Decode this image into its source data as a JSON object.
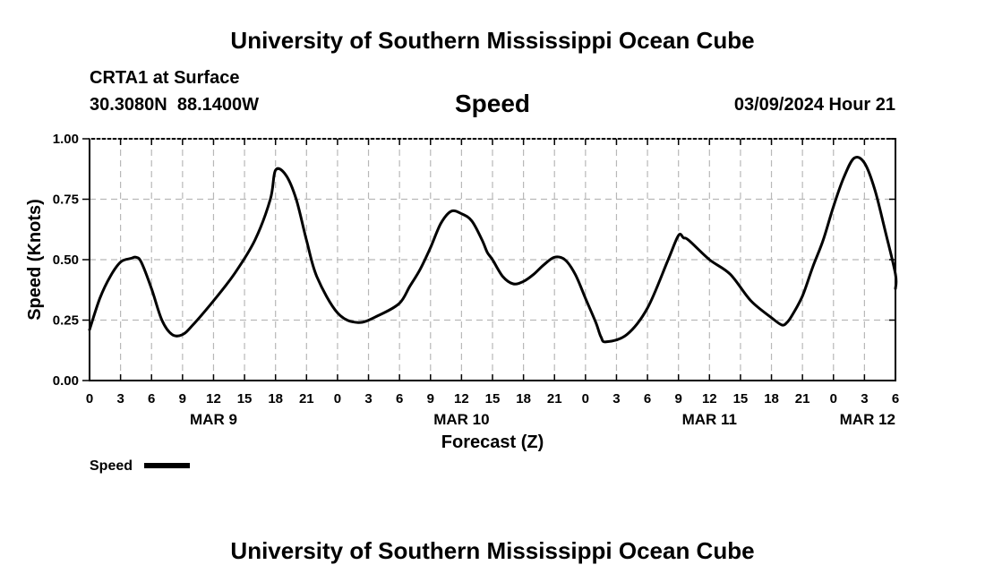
{
  "header": {
    "title": "University of Southern Mississippi Ocean Cube",
    "station": "CRTA1 at Surface",
    "coords": "30.3080N  88.1400W",
    "variable": "Speed",
    "datetime": "03/09/2024 Hour 21"
  },
  "footer": {
    "title": "University of Southern Mississippi Ocean Cube"
  },
  "chart_data": {
    "type": "line",
    "title": "Speed",
    "xlabel": "Forecast (Z)",
    "ylabel": "Speed (Knots)",
    "ylim": [
      0,
      1
    ],
    "xlim": [
      0,
      78
    ],
    "grid": true,
    "legend": {
      "position": "bottom-left",
      "entries": [
        "Speed"
      ]
    },
    "yticks": [
      0,
      0.25,
      0.5,
      0.75,
      1.0
    ],
    "ytick_labels": [
      "0.00",
      "0.25",
      "0.50",
      "0.75",
      "1.00"
    ],
    "xticks": [
      0,
      3,
      6,
      9,
      12,
      15,
      18,
      21,
      24,
      27,
      30,
      33,
      36,
      39,
      42,
      45,
      48,
      51,
      54,
      57,
      60,
      63,
      66,
      69,
      72,
      75,
      78
    ],
    "xtick_labels": [
      "0",
      "3",
      "6",
      "9",
      "12",
      "15",
      "18",
      "21",
      "0",
      "3",
      "6",
      "9",
      "12",
      "15",
      "18",
      "21",
      "0",
      "3",
      "6",
      "9",
      "12",
      "15",
      "18",
      "21",
      "0",
      "3",
      "6"
    ],
    "date_labels": [
      {
        "text": "MAR 9",
        "hour": 12
      },
      {
        "text": "MAR 10",
        "hour": 36
      },
      {
        "text": "MAR 11",
        "hour": 60
      },
      {
        "text": "MAR 12",
        "hour": 78
      }
    ],
    "series": [
      {
        "name": "Speed",
        "color": "#000000",
        "x": [
          0,
          1,
          2,
          3,
          4,
          4.5,
          5,
          6,
          7,
          8,
          9,
          10,
          12,
          14,
          16,
          17.5,
          18,
          19,
          20,
          21,
          22,
          24,
          26,
          28,
          30,
          31,
          32,
          33,
          34,
          35,
          36,
          37,
          38,
          38.5,
          39,
          40,
          41,
          42,
          43,
          44,
          45,
          46,
          47,
          48,
          49,
          49.5,
          50,
          52,
          54,
          56,
          57,
          57.5,
          58,
          60,
          62,
          64,
          66,
          67,
          67.5,
          68,
          69,
          70,
          71,
          72,
          73,
          74,
          75,
          76,
          77,
          78
        ],
        "values": [
          0.21,
          0.34,
          0.43,
          0.49,
          0.505,
          0.51,
          0.49,
          0.38,
          0.25,
          0.19,
          0.19,
          0.23,
          0.33,
          0.44,
          0.58,
          0.75,
          0.87,
          0.85,
          0.75,
          0.58,
          0.43,
          0.28,
          0.24,
          0.27,
          0.32,
          0.39,
          0.46,
          0.55,
          0.65,
          0.7,
          0.69,
          0.66,
          0.58,
          0.53,
          0.5,
          0.43,
          0.4,
          0.41,
          0.44,
          0.48,
          0.51,
          0.5,
          0.44,
          0.34,
          0.24,
          0.18,
          0.16,
          0.19,
          0.3,
          0.5,
          0.6,
          0.59,
          0.58,
          0.5,
          0.44,
          0.33,
          0.26,
          0.23,
          0.24,
          0.27,
          0.35,
          0.47,
          0.58,
          0.72,
          0.84,
          0.92,
          0.9,
          0.79,
          0.62,
          0.44
        ],
        "x_tail": [
          78
        ],
        "values_tail": [
          0.38
        ]
      }
    ]
  }
}
